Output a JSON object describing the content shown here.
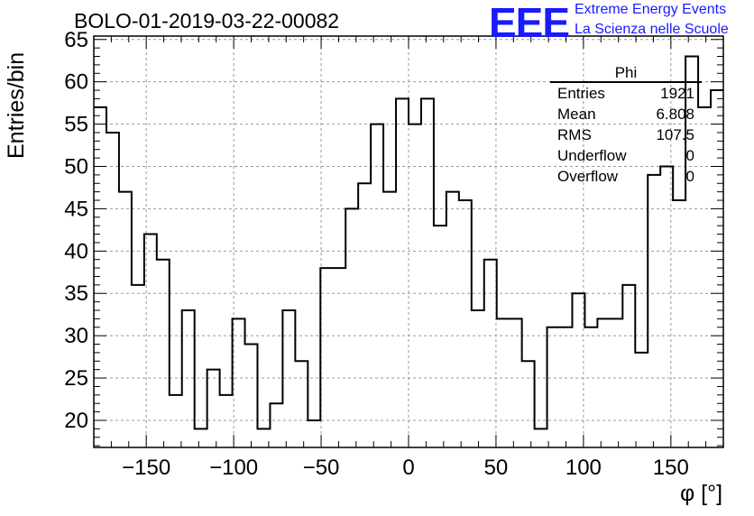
{
  "header": {
    "title": "BOLO-01-2019-03-22-00082",
    "logo_text": "EEE",
    "logo_line1": "Extreme Energy Events",
    "logo_line2": "La Scienza nelle Scuole",
    "logo_color": "#1a1aff"
  },
  "stats": {
    "name": "Phi",
    "rows": [
      {
        "label": "Entries",
        "value": "1921"
      },
      {
        "label": "Mean",
        "value": "6.808"
      },
      {
        "label": "RMS",
        "value": "107.5"
      },
      {
        "label": "Underflow",
        "value": "0"
      },
      {
        "label": "Overflow",
        "value": "0"
      }
    ]
  },
  "chart_data": {
    "type": "histogram",
    "title": "BOLO-01-2019-03-22-00082",
    "xlabel": "φ [°]",
    "ylabel": "Entries/bin",
    "xlim": [
      -180,
      180
    ],
    "ylim": [
      16.8,
      65.4
    ],
    "bin_width": 7.2,
    "values": [
      57,
      54,
      47,
      36,
      42,
      39,
      23,
      33,
      19,
      26,
      23,
      32,
      29,
      19,
      22,
      33,
      27,
      20,
      38,
      38,
      45,
      48,
      55,
      47,
      58,
      55,
      58,
      43,
      47,
      46,
      33,
      39,
      32,
      32,
      27,
      19,
      31,
      31,
      35,
      31,
      32,
      32,
      36,
      28,
      49,
      50,
      46,
      63,
      57,
      59
    ],
    "x_ticks": [
      -150,
      -100,
      -50,
      0,
      50,
      100,
      150
    ],
    "x_tick_labels": [
      "−150",
      "−100",
      "−50",
      "0",
      "50",
      "100",
      "150"
    ],
    "y_ticks": [
      20,
      25,
      30,
      35,
      40,
      45,
      50,
      55,
      60,
      65
    ],
    "y_tick_labels": [
      "20",
      "25",
      "30",
      "35",
      "40",
      "45",
      "50",
      "55",
      "60",
      "65"
    ],
    "grid": true,
    "legend": "top-right stats box"
  }
}
